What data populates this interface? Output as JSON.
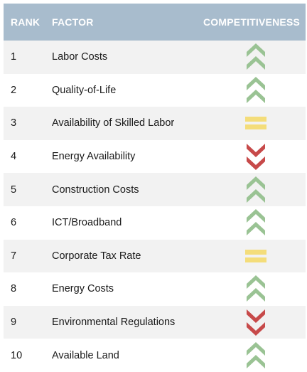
{
  "header": {
    "rank": "RANK",
    "factor": "FACTOR",
    "competitiveness": "COMPETITIVENESS"
  },
  "colors": {
    "header_bg": "#a8bccd",
    "up": "#9ac394",
    "neutral": "#f4dd7a",
    "down": "#c74a4a"
  },
  "rows": [
    {
      "rank": "1",
      "factor": "Labor Costs",
      "competitiveness": "up",
      "icon": "double-chevron-up-icon"
    },
    {
      "rank": "2",
      "factor": "Quality-of-Life",
      "competitiveness": "up",
      "icon": "double-chevron-up-icon"
    },
    {
      "rank": "3",
      "factor": "Availability of Skilled Labor",
      "competitiveness": "neutral",
      "icon": "equals-icon"
    },
    {
      "rank": "4",
      "factor": "Energy Availability",
      "competitiveness": "down",
      "icon": "double-chevron-down-icon"
    },
    {
      "rank": "5",
      "factor": "Construction Costs",
      "competitiveness": "up",
      "icon": "double-chevron-up-icon"
    },
    {
      "rank": "6",
      "factor": "ICT/Broadband",
      "competitiveness": "up",
      "icon": "double-chevron-up-icon"
    },
    {
      "rank": "7",
      "factor": "Corporate Tax Rate",
      "competitiveness": "neutral",
      "icon": "equals-icon"
    },
    {
      "rank": "8",
      "factor": "Energy Costs",
      "competitiveness": "up",
      "icon": "double-chevron-up-icon"
    },
    {
      "rank": "9",
      "factor": "Environmental Regulations",
      "competitiveness": "down",
      "icon": "double-chevron-down-icon"
    },
    {
      "rank": "10",
      "factor": "Available Land",
      "competitiveness": "up",
      "icon": "double-chevron-up-icon"
    }
  ]
}
